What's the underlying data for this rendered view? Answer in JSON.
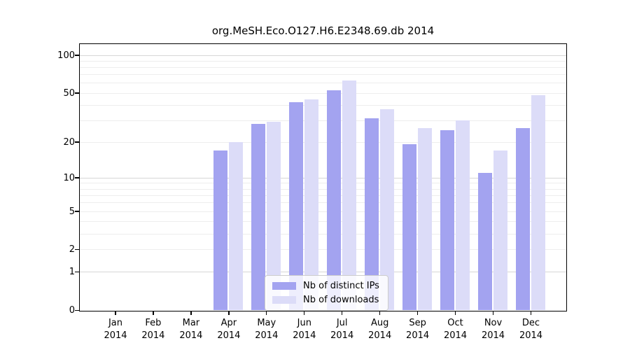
{
  "chart_data": {
    "type": "bar",
    "title": "org.MeSH.Eco.O127.H6.E2348.69.db 2014",
    "categories": [
      "Jan",
      "Feb",
      "Mar",
      "Apr",
      "May",
      "Jun",
      "Jul",
      "Aug",
      "Sep",
      "Oct",
      "Nov",
      "Dec"
    ],
    "year_sublabel": "2014",
    "series": [
      {
        "name": "Nb of distinct IPs",
        "color": "#a3a3f0",
        "values": [
          0,
          0,
          0,
          17,
          28,
          42,
          52,
          31,
          19,
          25,
          11,
          26
        ]
      },
      {
        "name": "Nb of downloads",
        "color": "#dcdcf8",
        "values": [
          0,
          0,
          0,
          20,
          29,
          44,
          63,
          37,
          26,
          30,
          17,
          48
        ]
      }
    ],
    "yticks": [
      0,
      1,
      2,
      5,
      10,
      20,
      50,
      100
    ],
    "minor_gridline_values": [
      2,
      3,
      4,
      5,
      6,
      7,
      8,
      9,
      20,
      30,
      40,
      50,
      60,
      70,
      80,
      90
    ],
    "major_gridline_values": [
      1,
      10,
      100
    ],
    "scale": "log10(value+1)",
    "ylim": [
      0,
      101
    ],
    "grid": "on",
    "legend_position": "inside-bottom-center",
    "colors": {
      "distinct_ips": "#a3a3f0",
      "downloads": "#dcdcf8",
      "major_grid": "#d6d6d6",
      "minor_grid": "#ededed",
      "spine": "#000000"
    }
  }
}
